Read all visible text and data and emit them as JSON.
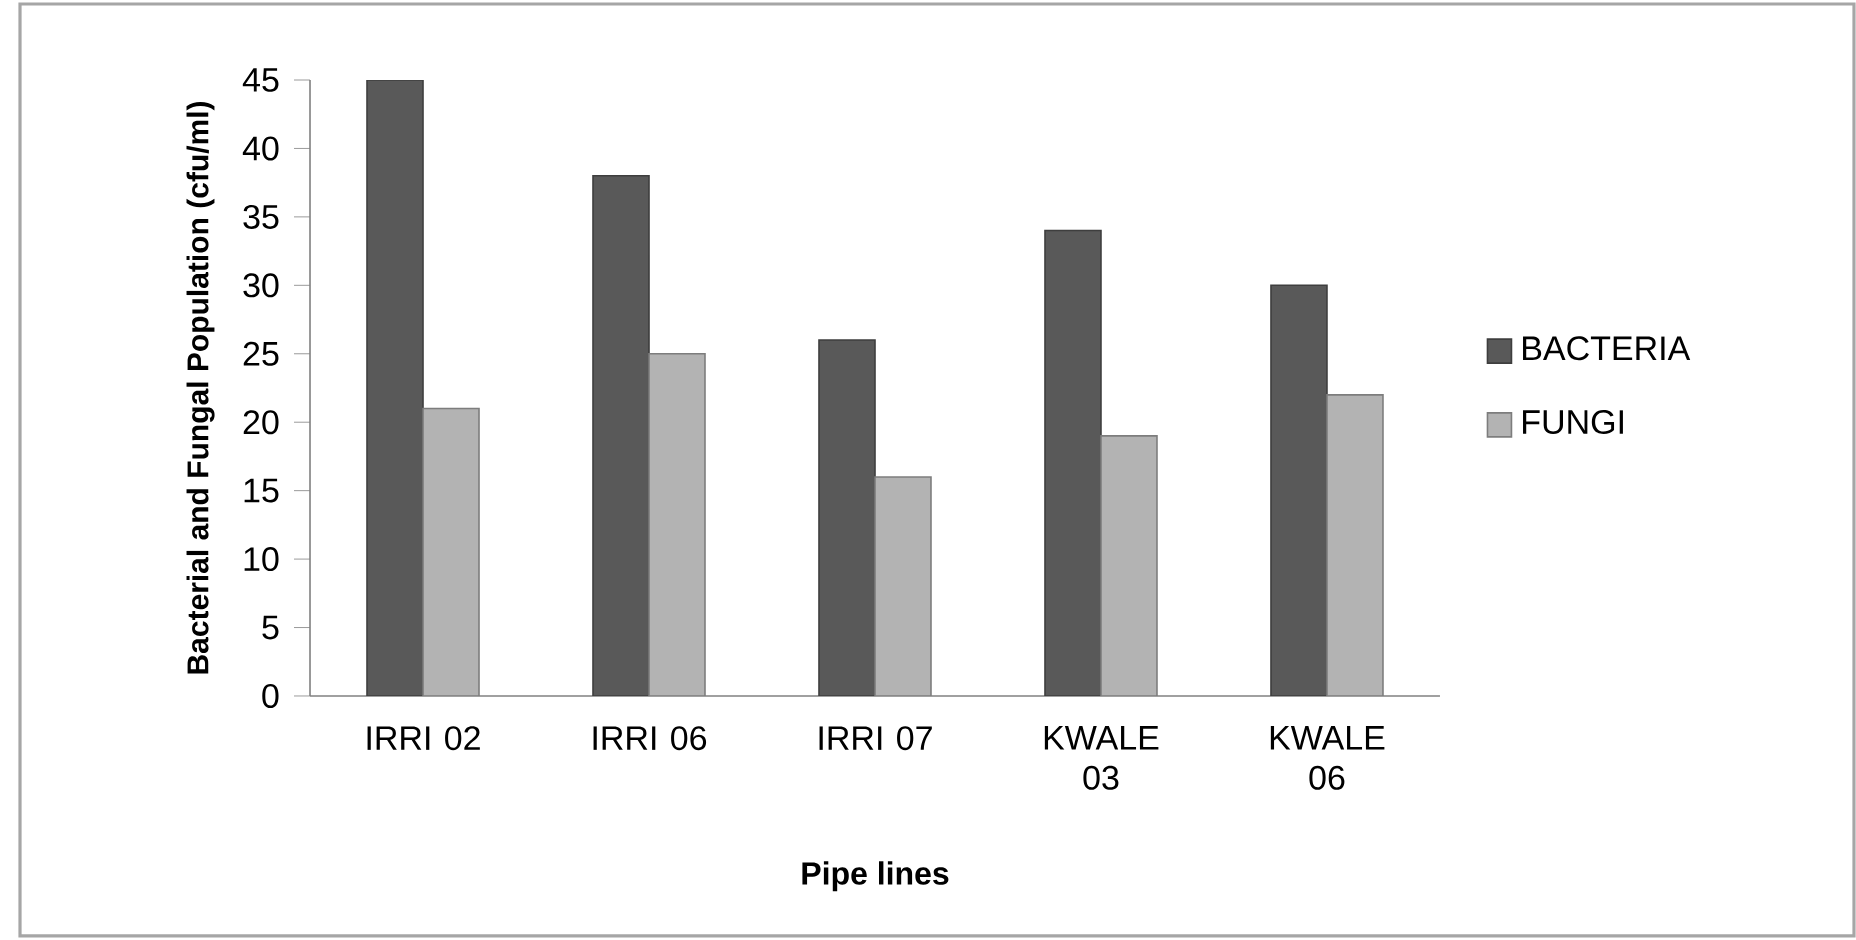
{
  "chart_data": {
    "type": "bar",
    "xlabel": "Pipe lines",
    "ylabel": "Bacterial and Fungal Population (cfu/ml)",
    "categories": [
      "IRRI 02",
      "IRRI 06",
      "IRRI 07",
      "KWALE 03",
      "KWALE 06"
    ],
    "series": [
      {
        "name": "BACTERIA",
        "color": "#595959",
        "values": [
          45,
          38,
          26,
          34,
          30
        ]
      },
      {
        "name": "FUNGI",
        "color": "#b3b3b3",
        "values": [
          21,
          25,
          16,
          19,
          22
        ]
      }
    ],
    "ylim": [
      0,
      45
    ],
    "yticks": [
      0,
      5,
      10,
      15,
      20,
      25,
      30,
      35,
      40,
      45
    ],
    "grid": false,
    "legend": "right"
  }
}
